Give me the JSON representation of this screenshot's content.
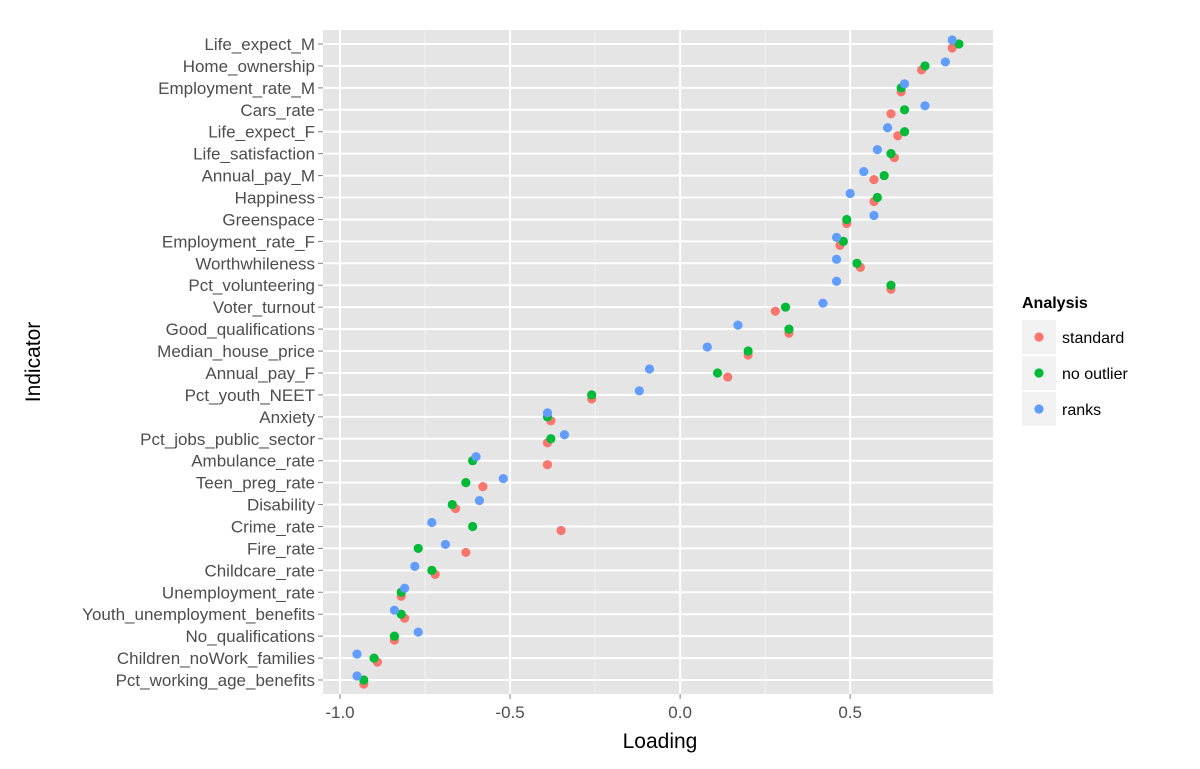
{
  "chart_data": {
    "type": "scatter",
    "xlabel": "Loading",
    "ylabel": "Indicator",
    "xlim": [
      -1.05,
      0.92
    ],
    "xticks": [
      -1.0,
      -0.5,
      0.0,
      0.5
    ],
    "xtick_labels": [
      "-1.0",
      "-0.5",
      "0.0",
      "0.5"
    ],
    "grid": true,
    "legend": {
      "title": "Analysis",
      "placement": "right",
      "entries": [
        "standard",
        "no outlier",
        "ranks"
      ]
    },
    "categories": [
      "Life_expect_M",
      "Home_ownership",
      "Employment_rate_M",
      "Cars_rate",
      "Life_expect_F",
      "Life_satisfaction",
      "Annual_pay_M",
      "Happiness",
      "Greenspace",
      "Employment_rate_F",
      "Worthwhileness",
      "Pct_volunteering",
      "Voter_turnout",
      "Good_qualifications",
      "Median_house_price",
      "Annual_pay_F",
      "Pct_youth_NEET",
      "Anxiety",
      "Pct_jobs_public_sector",
      "Ambulance_rate",
      "Teen_preg_rate",
      "Disability",
      "Crime_rate",
      "Fire_rate",
      "Childcare_rate",
      "Unemployment_rate",
      "Youth_unemployment_benefits",
      "No_qualifications",
      "Children_noWork_families",
      "Pct_working_age_benefits"
    ],
    "series": [
      {
        "name": "standard",
        "color": "#F8766D",
        "values": [
          0.8,
          0.71,
          0.65,
          0.62,
          0.64,
          0.63,
          0.57,
          0.57,
          0.49,
          0.47,
          0.53,
          0.62,
          0.28,
          0.32,
          0.2,
          0.14,
          -0.26,
          -0.38,
          -0.39,
          -0.39,
          -0.58,
          -0.66,
          -0.35,
          -0.63,
          -0.72,
          -0.82,
          -0.81,
          -0.84,
          -0.89,
          -0.93
        ]
      },
      {
        "name": "no outlier",
        "color": "#00BA38",
        "values": [
          0.82,
          0.72,
          0.65,
          0.66,
          0.66,
          0.62,
          0.6,
          0.58,
          0.49,
          0.48,
          0.52,
          0.62,
          0.31,
          0.32,
          0.2,
          0.11,
          -0.26,
          -0.39,
          -0.38,
          -0.61,
          -0.63,
          -0.67,
          -0.61,
          -0.77,
          -0.73,
          -0.82,
          -0.82,
          -0.84,
          -0.9,
          -0.93
        ]
      },
      {
        "name": "ranks",
        "color": "#619CFF",
        "values": [
          0.8,
          0.78,
          0.66,
          0.72,
          0.61,
          0.58,
          0.54,
          0.5,
          0.57,
          0.46,
          0.46,
          0.46,
          0.42,
          0.17,
          0.08,
          -0.09,
          -0.12,
          -0.39,
          -0.34,
          -0.6,
          -0.52,
          -0.59,
          -0.73,
          -0.69,
          -0.78,
          -0.81,
          -0.84,
          -0.77,
          -0.95,
          -0.95
        ]
      }
    ]
  }
}
